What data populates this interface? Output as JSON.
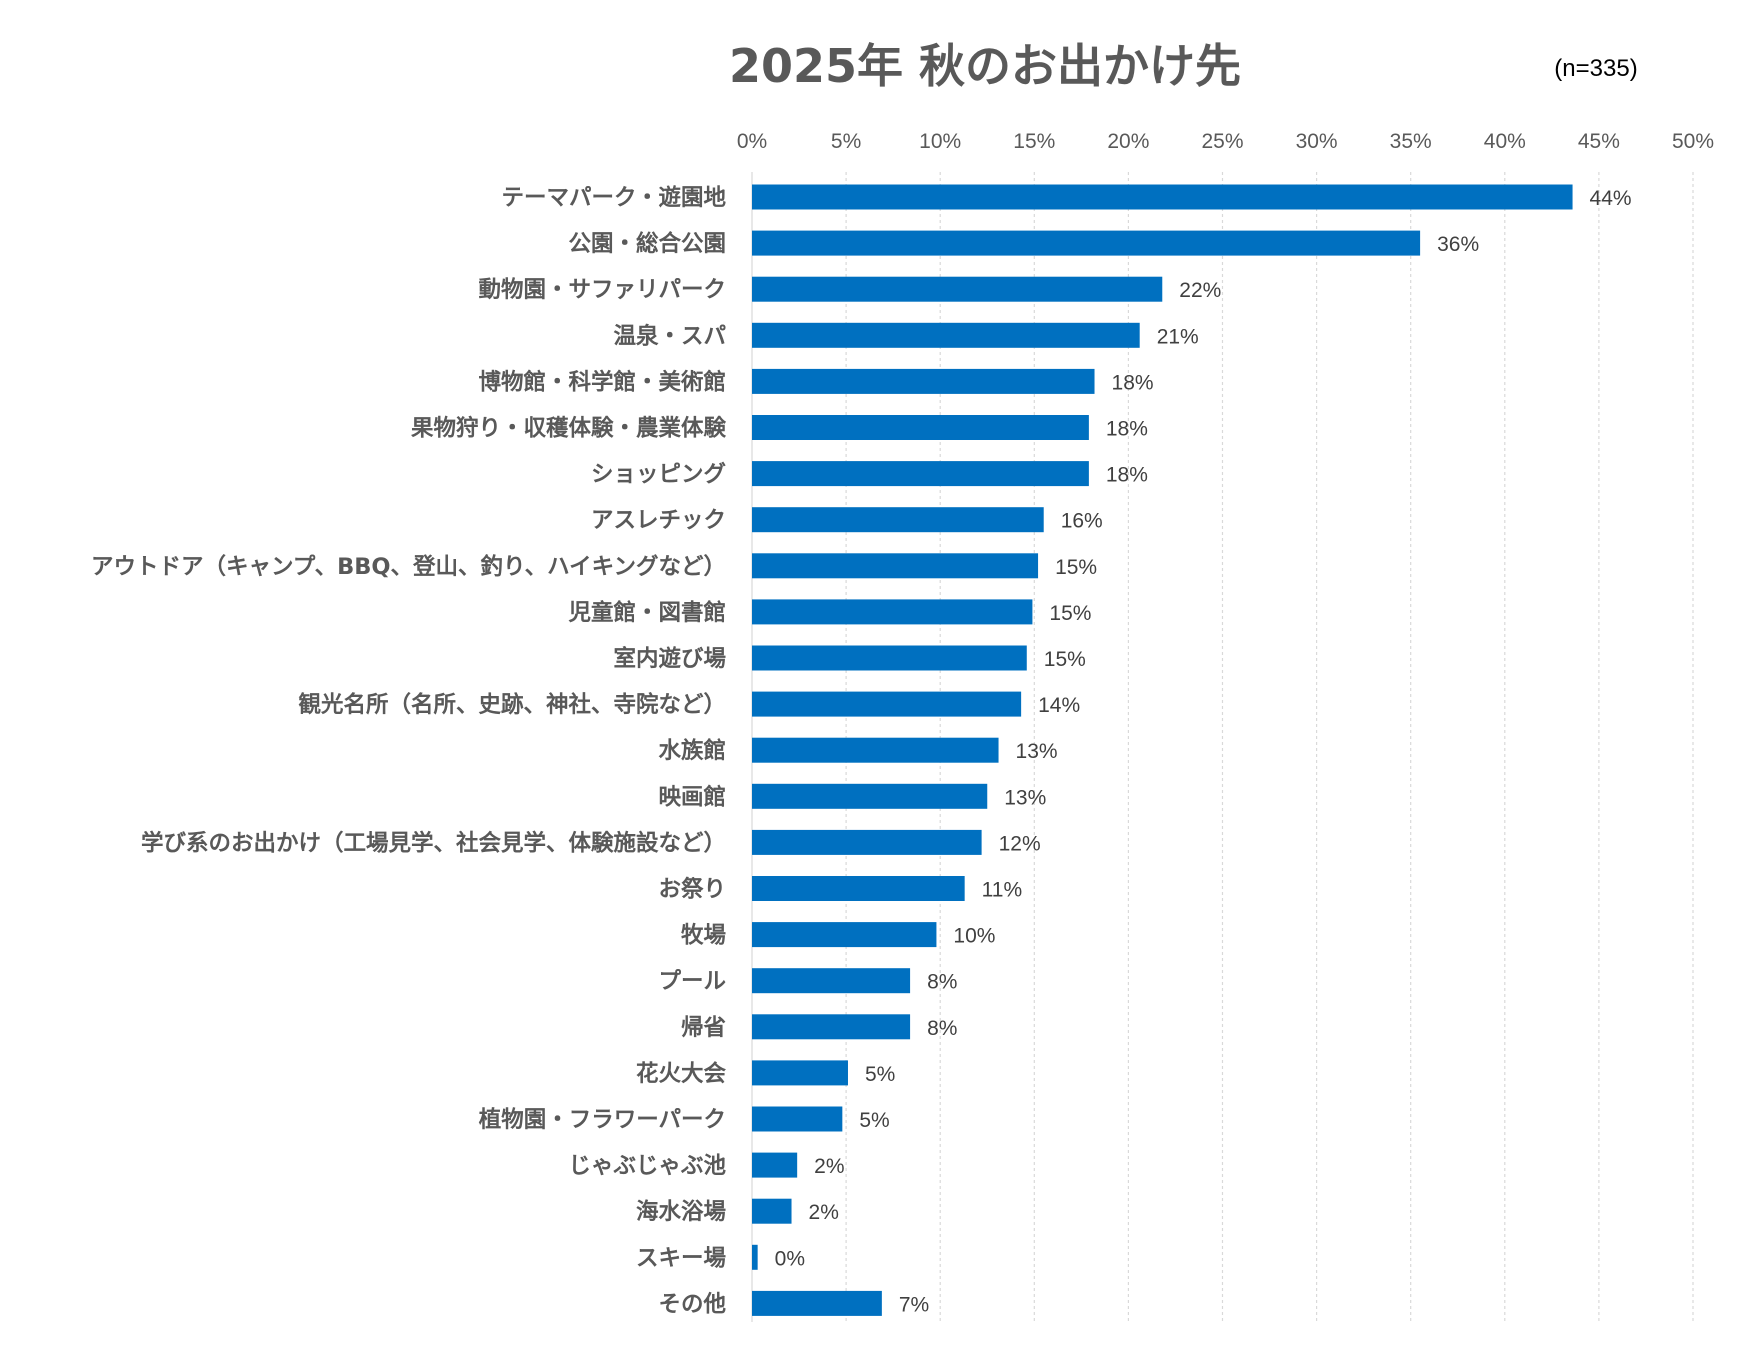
{
  "colors": {
    "bar": "#0070C0",
    "grid": "#D9D9D9",
    "text": "#595959",
    "value_text": "#404040"
  },
  "chart_data": {
    "type": "bar",
    "orientation": "horizontal",
    "title": "2025年 秋のお出かけ先",
    "note": "(n=335)",
    "xlim": [
      0,
      50
    ],
    "ticks": [
      0,
      5,
      10,
      15,
      20,
      25,
      30,
      35,
      40,
      45,
      50
    ],
    "tick_labels": [
      "0%",
      "5%",
      "10%",
      "15%",
      "20%",
      "25%",
      "30%",
      "35%",
      "40%",
      "45%",
      "50%"
    ],
    "grid": true,
    "categories": [
      "テーマパーク・遊園地",
      "公園・総合公園",
      "動物園・サファリパーク",
      "温泉・スパ",
      "博物館・科学館・美術館",
      "果物狩り・収穫体験・農業体験",
      "ショッピング",
      "アスレチック",
      "アウトドア（キャンプ、BBQ、登山、釣り、ハイキングなど）",
      "児童館・図書館",
      "室内遊び場",
      "観光名所（名所、史跡、神社、寺院など）",
      "水族館",
      "映画館",
      "学び系のお出かけ（工場見学、社会見学、体験施設など）",
      "お祭り",
      "牧場",
      "プール",
      "帰省",
      "花火大会",
      "植物園・フラワーパーク",
      "じゃぶじゃぶ池",
      "海水浴場",
      "スキー場",
      "その他"
    ],
    "values": [
      43.6,
      35.5,
      21.8,
      20.6,
      18.2,
      17.9,
      17.9,
      15.5,
      15.2,
      14.9,
      14.6,
      14.3,
      13.1,
      12.5,
      12.2,
      11.3,
      9.8,
      8.4,
      8.4,
      5.1,
      4.8,
      2.4,
      2.1,
      0.3,
      6.9
    ],
    "value_labels": [
      "44%",
      "36%",
      "22%",
      "21%",
      "18%",
      "18%",
      "18%",
      "16%",
      "15%",
      "15%",
      "15%",
      "14%",
      "13%",
      "13%",
      "12%",
      "11%",
      "10%",
      "8%",
      "8%",
      "5%",
      "5%",
      "2%",
      "2%",
      "0%",
      "7%"
    ]
  }
}
